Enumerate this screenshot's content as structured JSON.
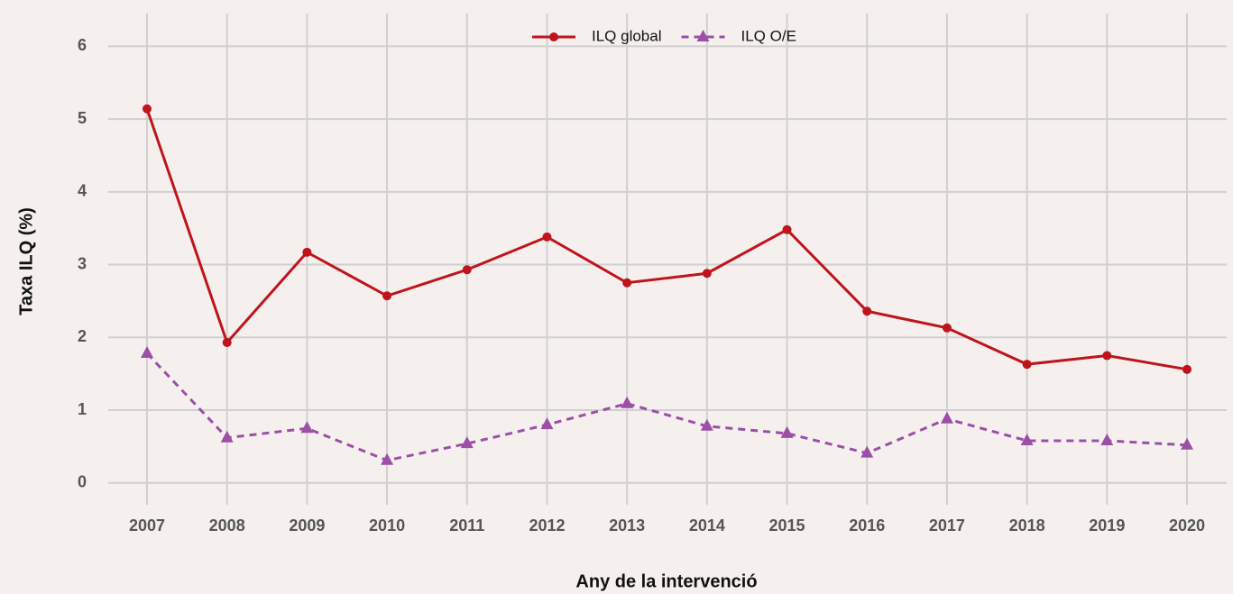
{
  "chart_data": {
    "type": "line",
    "x_label": "Any de la intervenció",
    "y_label": "Taxa ILQ (%)",
    "categories": [
      "2007",
      "2008",
      "2009",
      "2010",
      "2011",
      "2012",
      "2013",
      "2014",
      "2015",
      "2016",
      "2017",
      "2018",
      "2019",
      "2020"
    ],
    "series": [
      {
        "name": "ILQ global",
        "color": "#c0141c",
        "marker": "circle",
        "dash": false,
        "values": [
          5.14,
          1.93,
          3.17,
          2.57,
          2.93,
          3.38,
          2.75,
          2.88,
          3.48,
          2.36,
          2.13,
          1.63,
          1.75,
          1.56
        ]
      },
      {
        "name": "ILQ O/E",
        "color": "#9b4fa6",
        "marker": "triangle",
        "dash": true,
        "values": [
          1.78,
          0.62,
          0.75,
          0.31,
          0.54,
          0.8,
          1.09,
          0.78,
          0.68,
          0.41,
          0.88,
          0.58,
          0.58,
          0.52
        ]
      }
    ],
    "ylim": [
      -0.3,
      6.45
    ],
    "yticks": [
      0,
      1,
      2,
      3,
      4,
      5,
      6
    ],
    "grid": true,
    "legend": "top"
  }
}
